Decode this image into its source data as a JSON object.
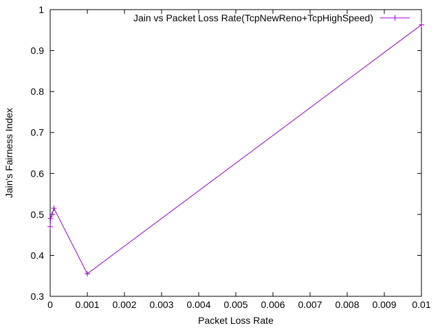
{
  "chart_data": {
    "type": "line",
    "title": "",
    "xlabel": "Packet Loss Rate",
    "ylabel": "Jain's Fairness Index",
    "xlim": [
      0,
      0.01
    ],
    "ylim": [
      0.3,
      1.0
    ],
    "x_ticks": [
      0,
      0.001,
      0.002,
      0.003,
      0.004,
      0.005,
      0.006,
      0.007,
      0.008,
      0.009,
      0.01
    ],
    "x_tick_labels": [
      "0",
      "0.001",
      "0.002",
      "0.003",
      "0.004",
      "0.005",
      "0.006",
      "0.007",
      "0.008",
      "0.009",
      "0.01"
    ],
    "y_ticks": [
      0.3,
      0.4,
      0.5,
      0.6,
      0.7,
      0.8,
      0.9,
      1.0
    ],
    "y_tick_labels": [
      "0.3",
      "0.4",
      "0.5",
      "0.6",
      "0.7",
      "0.8",
      "0.9",
      "1"
    ],
    "grid": false,
    "legend_position": "top-right",
    "series": [
      {
        "name": "Jain vs Packet Loss Rate(TcpNewReno+TcpHighSpeed)",
        "color": "#9400d3",
        "marker": "plus",
        "points": [
          {
            "x": 0.0,
            "y": 0.47
          },
          {
            "x": 1e-05,
            "y": 0.49
          },
          {
            "x": 5e-05,
            "y": 0.5
          },
          {
            "x": 0.0001,
            "y": 0.515
          },
          {
            "x": 0.001,
            "y": 0.355
          },
          {
            "x": 0.01,
            "y": 0.963
          }
        ]
      }
    ]
  }
}
